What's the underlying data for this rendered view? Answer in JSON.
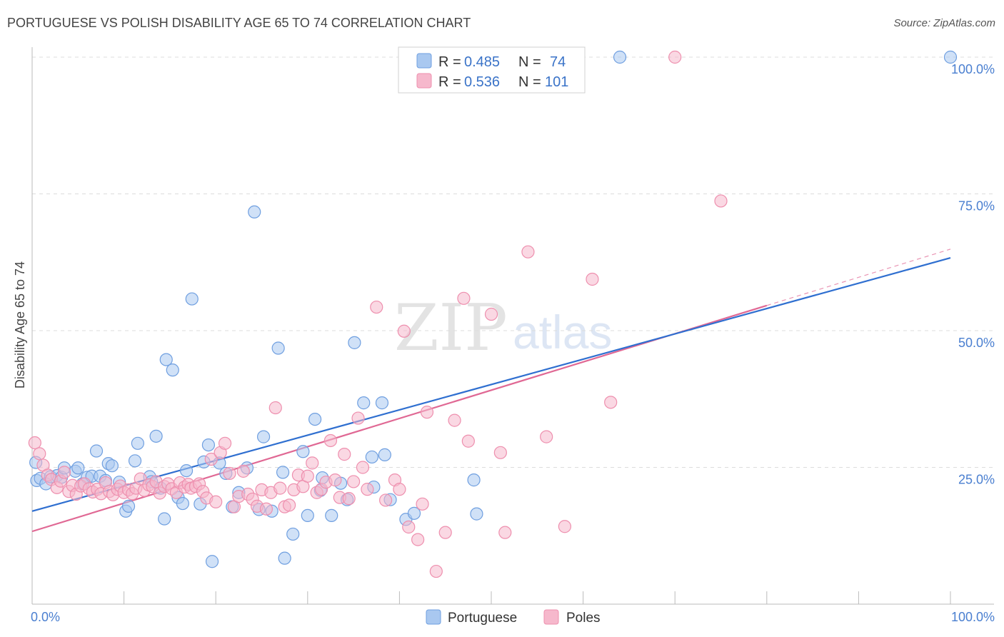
{
  "title": "PORTUGUESE VS POLISH DISABILITY AGE 65 TO 74 CORRELATION CHART",
  "source": "Source: ZipAtlas.com",
  "watermark": {
    "zip": "ZIP",
    "atlas": "atlas"
  },
  "colors": {
    "portuguese_fill": "#a9c8f0",
    "portuguese_stroke": "#6f9fe0",
    "portuguese_line": "#2f6fd0",
    "poles_fill": "#f6b8cc",
    "poles_stroke": "#ee8fae",
    "poles_line": "#e06894",
    "accent_text": "#3a73c8",
    "grid": "#dcdcdc"
  },
  "stats": [
    {
      "series": "Portuguese",
      "r_label": "R =",
      "r_value": "0.485",
      "n_label": "N =",
      "n_value": "74"
    },
    {
      "series": "Poles",
      "r_label": "R =",
      "r_value": "0.536",
      "n_label": "N =",
      "n_value": "101"
    }
  ],
  "chart_data": {
    "type": "scatter",
    "title": "PORTUGUESE VS POLISH DISABILITY AGE 65 TO 74 CORRELATION CHART",
    "xlabel": "",
    "ylabel": "Disability Age 65 to 74",
    "xlim": [
      0,
      100
    ],
    "ylim": [
      0,
      100
    ],
    "x_tick_labels": [
      "0.0%",
      "100.0%"
    ],
    "y_tick_labels": [
      "25.0%",
      "50.0%",
      "75.0%",
      "100.0%"
    ],
    "y_ticks": [
      25,
      50,
      75,
      100
    ],
    "grid": true,
    "legend_position": "bottom-center",
    "series": [
      {
        "name": "Portuguese",
        "trend": {
          "x": [
            0,
            100
          ],
          "y": [
            17.0,
            63.3
          ]
        },
        "points": [
          [
            0.4,
            25.9
          ],
          [
            0.5,
            22.6
          ],
          [
            0.9,
            23.0
          ],
          [
            1.5,
            22.0
          ],
          [
            2.0,
            23.3
          ],
          [
            2.7,
            23.5
          ],
          [
            3.2,
            23.2
          ],
          [
            3.5,
            24.9
          ],
          [
            4.7,
            24.3
          ],
          [
            5.0,
            24.9
          ],
          [
            5.5,
            22.0
          ],
          [
            6.0,
            23.2
          ],
          [
            6.5,
            23.4
          ],
          [
            7.0,
            28.0
          ],
          [
            7.4,
            23.4
          ],
          [
            8.0,
            22.6
          ],
          [
            8.3,
            25.7
          ],
          [
            8.7,
            25.3
          ],
          [
            9.5,
            22.3
          ],
          [
            10.2,
            17.0
          ],
          [
            10.5,
            17.9
          ],
          [
            11.2,
            26.2
          ],
          [
            11.5,
            29.4
          ],
          [
            12.8,
            23.3
          ],
          [
            13.0,
            22.4
          ],
          [
            13.5,
            30.7
          ],
          [
            14.0,
            21.2
          ],
          [
            14.4,
            15.6
          ],
          [
            14.6,
            44.7
          ],
          [
            15.3,
            42.8
          ],
          [
            15.9,
            19.5
          ],
          [
            16.4,
            18.4
          ],
          [
            16.8,
            24.4
          ],
          [
            17.4,
            55.8
          ],
          [
            18.3,
            18.3
          ],
          [
            18.7,
            26.0
          ],
          [
            19.2,
            29.1
          ],
          [
            19.6,
            7.8
          ],
          [
            20.4,
            25.8
          ],
          [
            21.1,
            23.9
          ],
          [
            21.8,
            17.8
          ],
          [
            22.5,
            20.4
          ],
          [
            23.4,
            24.9
          ],
          [
            24.2,
            71.7
          ],
          [
            24.7,
            17.3
          ],
          [
            25.2,
            30.6
          ],
          [
            26.1,
            17.0
          ],
          [
            26.8,
            46.8
          ],
          [
            27.3,
            24.1
          ],
          [
            27.5,
            8.4
          ],
          [
            28.4,
            12.8
          ],
          [
            29.5,
            27.9
          ],
          [
            30.0,
            16.2
          ],
          [
            30.8,
            33.8
          ],
          [
            31.4,
            20.8
          ],
          [
            31.6,
            23.1
          ],
          [
            32.6,
            16.2
          ],
          [
            33.6,
            22.1
          ],
          [
            34.3,
            19.1
          ],
          [
            35.1,
            47.8
          ],
          [
            36.1,
            36.8
          ],
          [
            37.0,
            26.9
          ],
          [
            37.2,
            21.4
          ],
          [
            38.1,
            36.8
          ],
          [
            38.4,
            27.3
          ],
          [
            39.0,
            19.1
          ],
          [
            40.7,
            15.5
          ],
          [
            41.6,
            16.6
          ],
          [
            48.1,
            22.7
          ],
          [
            48.4,
            16.5
          ],
          [
            64.0,
            100.0
          ],
          [
            100.0,
            100.0
          ]
        ]
      },
      {
        "name": "Poles",
        "trend": {
          "x": [
            0,
            80
          ],
          "y": [
            13.3,
            54.6
          ]
        },
        "trend_dashed_extension": {
          "x": [
            80,
            100
          ],
          "y": [
            54.6,
            64.9
          ]
        },
        "points": [
          [
            0.3,
            29.5
          ],
          [
            0.8,
            27.5
          ],
          [
            1.2,
            25.4
          ],
          [
            1.7,
            23.6
          ],
          [
            2.1,
            22.8
          ],
          [
            2.7,
            21.3
          ],
          [
            3.1,
            22.5
          ],
          [
            3.5,
            24.1
          ],
          [
            4.0,
            20.6
          ],
          [
            4.4,
            21.7
          ],
          [
            4.8,
            20.1
          ],
          [
            5.3,
            21.6
          ],
          [
            5.7,
            22.0
          ],
          [
            6.2,
            21.1
          ],
          [
            6.6,
            20.5
          ],
          [
            7.1,
            21.0
          ],
          [
            7.5,
            20.2
          ],
          [
            8.0,
            22.2
          ],
          [
            8.4,
            20.6
          ],
          [
            8.8,
            20.0
          ],
          [
            9.3,
            21.0
          ],
          [
            9.6,
            21.6
          ],
          [
            10.0,
            20.4
          ],
          [
            10.5,
            20.9
          ],
          [
            10.9,
            20.2
          ],
          [
            11.3,
            21.2
          ],
          [
            11.8,
            22.9
          ],
          [
            12.2,
            20.8
          ],
          [
            12.7,
            21.8
          ],
          [
            13.1,
            21.5
          ],
          [
            13.5,
            22.4
          ],
          [
            13.9,
            20.3
          ],
          [
            14.4,
            21.5
          ],
          [
            14.8,
            22.0
          ],
          [
            15.2,
            21.1
          ],
          [
            15.7,
            20.4
          ],
          [
            16.1,
            22.2
          ],
          [
            16.6,
            21.4
          ],
          [
            17.0,
            21.9
          ],
          [
            17.3,
            21.2
          ],
          [
            17.8,
            21.5
          ],
          [
            18.2,
            22.0
          ],
          [
            18.6,
            20.6
          ],
          [
            19.0,
            19.4
          ],
          [
            19.5,
            26.5
          ],
          [
            20.0,
            18.7
          ],
          [
            20.5,
            27.7
          ],
          [
            21.0,
            29.4
          ],
          [
            21.5,
            23.9
          ],
          [
            22.0,
            17.8
          ],
          [
            22.5,
            19.7
          ],
          [
            23.0,
            24.3
          ],
          [
            23.5,
            20.1
          ],
          [
            24.0,
            19.2
          ],
          [
            24.5,
            17.9
          ],
          [
            25.0,
            20.9
          ],
          [
            25.5,
            17.4
          ],
          [
            26.0,
            20.4
          ],
          [
            26.5,
            35.9
          ],
          [
            27.0,
            21.2
          ],
          [
            27.5,
            17.8
          ],
          [
            28.0,
            18.1
          ],
          [
            28.5,
            20.9
          ],
          [
            29.0,
            23.6
          ],
          [
            29.5,
            21.5
          ],
          [
            30.0,
            23.4
          ],
          [
            30.5,
            25.8
          ],
          [
            31.0,
            20.4
          ],
          [
            31.5,
            21.0
          ],
          [
            32.0,
            22.3
          ],
          [
            32.5,
            29.9
          ],
          [
            33.0,
            22.7
          ],
          [
            33.5,
            19.5
          ],
          [
            34.0,
            27.4
          ],
          [
            34.5,
            19.3
          ],
          [
            35.0,
            22.4
          ],
          [
            35.5,
            34.0
          ],
          [
            36.0,
            25.0
          ],
          [
            36.5,
            21.0
          ],
          [
            37.5,
            54.3
          ],
          [
            38.5,
            19.0
          ],
          [
            39.5,
            22.7
          ],
          [
            40.0,
            21.0
          ],
          [
            40.5,
            49.9
          ],
          [
            41.0,
            14.1
          ],
          [
            42.0,
            11.8
          ],
          [
            42.5,
            18.3
          ],
          [
            43.0,
            35.1
          ],
          [
            44.0,
            6.0
          ],
          [
            45.0,
            13.1
          ],
          [
            46.0,
            33.6
          ],
          [
            47.0,
            55.9
          ],
          [
            47.5,
            29.8
          ],
          [
            50.0,
            53.0
          ],
          [
            51.0,
            27.7
          ],
          [
            51.5,
            13.1
          ],
          [
            54.0,
            64.4
          ],
          [
            56.0,
            30.6
          ],
          [
            58.0,
            14.2
          ],
          [
            61.0,
            59.4
          ],
          [
            63.0,
            36.9
          ],
          [
            70.0,
            100.0
          ],
          [
            75.0,
            73.7
          ]
        ]
      }
    ]
  },
  "legend": [
    {
      "label": "Portuguese"
    },
    {
      "label": "Poles"
    }
  ]
}
